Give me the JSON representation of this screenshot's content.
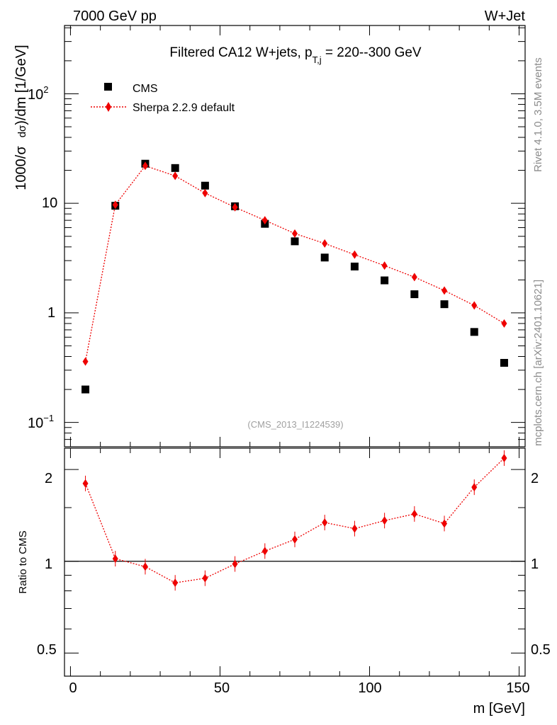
{
  "header": {
    "left": "7000 GeV pp",
    "right": "W+Jet"
  },
  "title": {
    "prefix": "Filtered CA12 W+jets, p",
    "subscript": "T,j",
    "suffix": " = 220--300 GeV"
  },
  "side_labels": {
    "rivet": "Rivet 4.1.0,  3.5M events",
    "mcplots": "mcplots.cern.ch [arXiv:2401.10621]"
  },
  "analysis_tag": "(CMS_2013_I1224539)",
  "legend": {
    "data_label": "CMS",
    "mc_label": "Sherpa 2.2.9 default"
  },
  "axes": {
    "main_ylabel_left": "1000/σ",
    "main_ylabel_mid": "dσ",
    "main_ylabel_right": ")/dm [1/GeV]",
    "ratio_ylabel": "Ratio to CMS",
    "xlabel": "m [GeV]",
    "main_ticks": [
      "10",
      "2",
      "10",
      "−1",
      "10",
      "1"
    ],
    "ratio_ticks": [
      "2",
      "1",
      "0.5"
    ],
    "x_ticks": [
      "0",
      "50",
      "100",
      "150"
    ]
  },
  "colors": {
    "data": "#000000",
    "mc": "#ee0000",
    "side_text": "#8c8c8c"
  },
  "chart_data": [
    {
      "type": "scatter",
      "panel": "main",
      "yscale": "log",
      "xlim": [
        -2,
        152
      ],
      "ylim": [
        0.06,
        420
      ],
      "x": [
        5,
        15,
        25,
        35,
        45,
        55,
        65,
        75,
        85,
        95,
        105,
        115,
        125,
        135,
        145
      ],
      "series": [
        {
          "name": "CMS",
          "values": [
            0.2,
            9.5,
            23,
            21,
            14.5,
            9.4,
            6.5,
            4.5,
            3.2,
            2.65,
            1.98,
            1.48,
            1.2,
            0.67,
            0.35
          ]
        },
        {
          "name": "Sherpa 2.2.9 default",
          "values": [
            0.36,
            9.7,
            22,
            17.8,
            12.4,
            9.2,
            7.0,
            5.3,
            4.3,
            3.4,
            2.7,
            2.12,
            1.6,
            1.17,
            0.8
          ]
        }
      ]
    },
    {
      "type": "line",
      "panel": "ratio",
      "yscale": "log",
      "xlim": [
        -2,
        152
      ],
      "ylim": [
        0.42,
        2.35
      ],
      "reference": 1,
      "x": [
        5,
        15,
        25,
        35,
        45,
        55,
        65,
        75,
        85,
        95,
        105,
        115,
        125,
        135,
        145
      ],
      "series": [
        {
          "name": "Sherpa 2.2.9 default / CMS",
          "values": [
            1.8,
            1.02,
            0.96,
            0.85,
            0.88,
            0.98,
            1.08,
            1.18,
            1.34,
            1.28,
            1.36,
            1.43,
            1.33,
            1.75,
            2.18
          ]
        }
      ]
    }
  ]
}
